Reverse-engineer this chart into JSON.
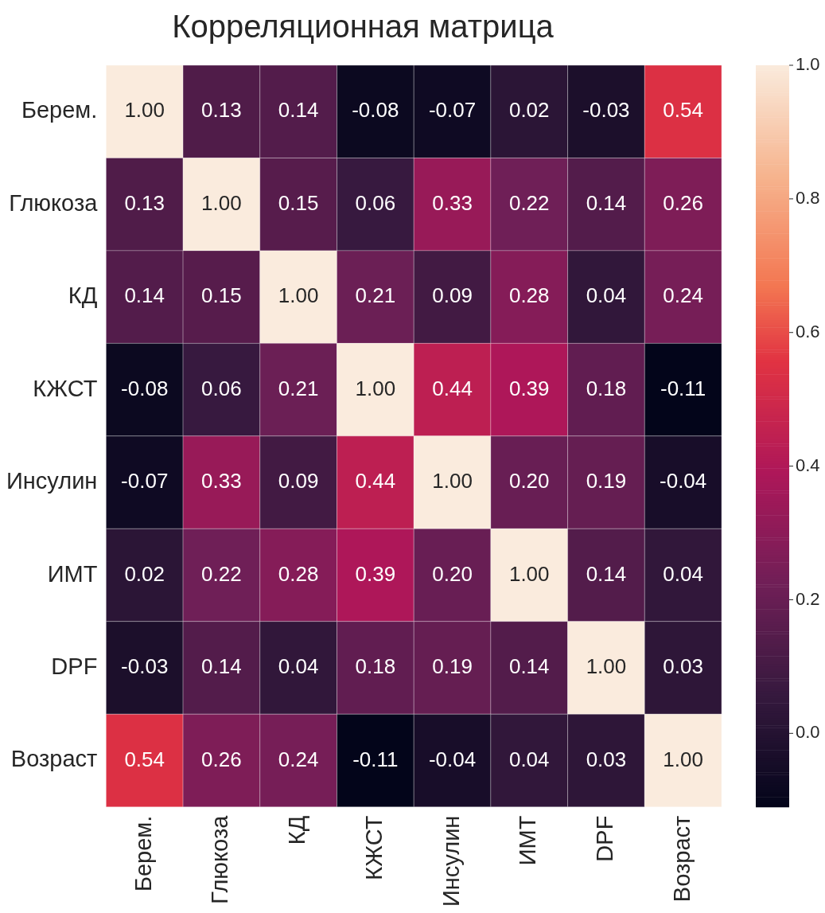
{
  "chart_data": {
    "type": "heatmap",
    "title": "Корреляционная матрица",
    "categories": [
      "Берем.",
      "Глюкоза",
      "КД",
      "КЖСТ",
      "Инсулин",
      "ИМТ",
      "DPF",
      "Возраст"
    ],
    "y_categories": [
      "Берем.",
      "Глюкоза",
      "КД",
      "КЖСТ",
      "Инсулин",
      "ИМТ",
      "DPF",
      "Возраст"
    ],
    "cells": [
      [
        1.0,
        0.13,
        0.14,
        -0.08,
        -0.07,
        0.02,
        -0.03,
        0.54
      ],
      [
        0.13,
        1.0,
        0.15,
        0.06,
        0.33,
        0.22,
        0.14,
        0.26
      ],
      [
        0.14,
        0.15,
        1.0,
        0.21,
        0.09,
        0.28,
        0.04,
        0.24
      ],
      [
        -0.08,
        0.06,
        0.21,
        1.0,
        0.44,
        0.39,
        0.18,
        -0.11
      ],
      [
        -0.07,
        0.33,
        0.09,
        0.44,
        1.0,
        0.2,
        0.19,
        -0.04
      ],
      [
        0.02,
        0.22,
        0.28,
        0.39,
        0.2,
        1.0,
        0.14,
        0.04
      ],
      [
        -0.03,
        0.14,
        0.04,
        0.18,
        0.19,
        0.14,
        1.0,
        0.03
      ],
      [
        0.54,
        0.26,
        0.24,
        -0.11,
        -0.04,
        0.04,
        0.03,
        1.0
      ]
    ],
    "clim": [
      -0.11,
      1.0
    ],
    "cticks": [
      {
        "value": 0,
        "label": "0.0"
      },
      0.2,
      0.4,
      0.6,
      0.8,
      {
        "value": 1,
        "label": "1.0"
      }
    ],
    "cell_labels": [
      [
        "1.00",
        "0.13",
        "0.14",
        "-0.08",
        "-0.07",
        "0.02",
        "-0.03",
        "0.54"
      ],
      [
        "0.13",
        "1.00",
        "0.15",
        "0.06",
        "0.33",
        "0.22",
        "0.14",
        "0.26"
      ],
      [
        "0.14",
        "0.15",
        "1.00",
        "0.21",
        "0.09",
        "0.28",
        "0.04",
        "0.24"
      ],
      [
        "-0.08",
        "0.06",
        "0.21",
        "1.00",
        "0.44",
        "0.39",
        "0.18",
        "-0.11"
      ],
      [
        "-0.07",
        "0.33",
        "0.09",
        "0.44",
        "1.00",
        "0.20",
        "0.19",
        "-0.04"
      ],
      [
        "0.02",
        "0.22",
        "0.28",
        "0.39",
        "0.20",
        "1.00",
        "0.14",
        "0.04"
      ],
      [
        "-0.03",
        "0.14",
        "0.04",
        "0.18",
        "0.19",
        "0.14",
        "1.00",
        "0.03"
      ],
      [
        "0.54",
        "0.26",
        "0.24",
        "-0.11",
        "-0.04",
        "0.04",
        "0.03",
        "1.00"
      ]
    ]
  }
}
